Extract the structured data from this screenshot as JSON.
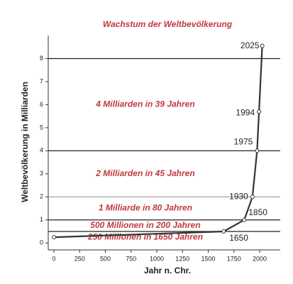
{
  "chart_data": {
    "type": "line",
    "title": "Wachstum der Weltbevölkerung",
    "x_label": "Jahr n. Chr.",
    "y_label": "Weltbevölkerung in Milliarden",
    "x": [
      0,
      1650,
      1850,
      1930,
      1975,
      1994,
      2025
    ],
    "series": [
      {
        "name": "Weltbevölkerung",
        "color": "#2b3a2b",
        "values": [
          0.25,
          0.5,
          1,
          2,
          4,
          5.7,
          8.55
        ]
      }
    ],
    "point_labels": [
      null,
      "1650",
      "1850",
      "1930",
      "1975",
      "1994",
      "2025"
    ],
    "xlim": [
      -55,
      2200
    ],
    "ylim": [
      -0.3,
      9
    ],
    "xticks": [
      0,
      250,
      500,
      750,
      1000,
      1250,
      1500,
      1750,
      2000
    ],
    "yticks": [
      0,
      1,
      2,
      3,
      4,
      5,
      6,
      7,
      8
    ],
    "hlines": [
      0.5,
      1,
      2,
      4,
      8
    ],
    "annotations": [
      "250 Millionen in 1650 Jahren",
      "500 Millionen in 200 Jahren",
      "1 Milliarde in 80 Jahren",
      "2 Milliarden in 45 Jahren",
      "4 Milliarden in 39 Jahren"
    ],
    "annotation_color": "#c0393e"
  }
}
